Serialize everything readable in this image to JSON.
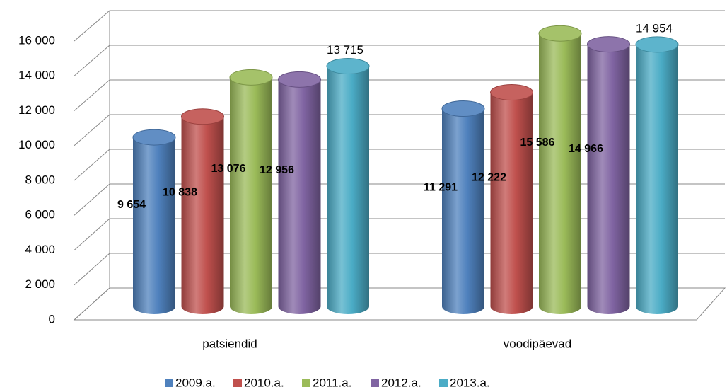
{
  "chart_data": {
    "type": "cylinder-bar",
    "categories": [
      "patsiendid",
      "voodipäevad"
    ],
    "series": [
      {
        "name": "2009.a.",
        "color": "#4f81bd",
        "values": [
          9654,
          11291
        ],
        "value_labels": [
          "9 654",
          "11 291"
        ]
      },
      {
        "name": "2010.a.",
        "color": "#c0504d",
        "values": [
          10838,
          12222
        ],
        "value_labels": [
          "10 838",
          "12 222"
        ]
      },
      {
        "name": "2011.a.",
        "color": "#9bbb59",
        "values": [
          13076,
          15586
        ],
        "value_labels": [
          "13 076",
          "15 586"
        ]
      },
      {
        "name": "2012.a.",
        "color": "#8064a2",
        "values": [
          12956,
          14966
        ],
        "value_labels": [
          "12 956",
          "14 966"
        ]
      },
      {
        "name": "2013.a.",
        "color": "#4bacc6",
        "values": [
          13715,
          14954
        ],
        "value_labels": [
          "13 715",
          "14 954"
        ]
      }
    ],
    "ylim": [
      0,
      16000
    ],
    "yticks": [
      0,
      {
        "value": 2000,
        "label": "2 000"
      },
      {
        "value": 4000,
        "label": "4 000"
      },
      {
        "value": 6000,
        "label": "6 000"
      },
      {
        "value": 8000,
        "label": "8 000"
      },
      {
        "value": 10000,
        "label": "10 000"
      },
      {
        "value": 12000,
        "label": "12 000"
      },
      {
        "value": 14000,
        "label": "14 000"
      },
      {
        "value": 16000,
        "label": "16 000"
      }
    ],
    "grid": true,
    "legend": "bottom"
  }
}
